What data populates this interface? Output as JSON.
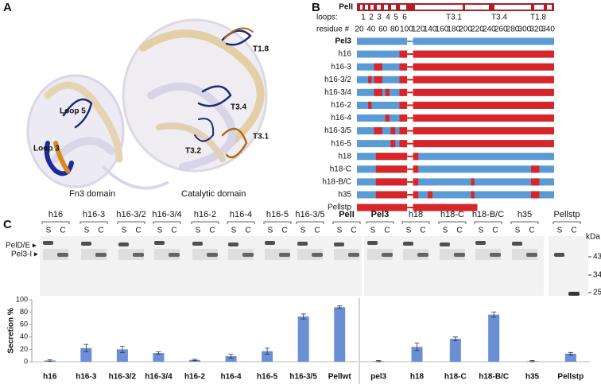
{
  "panel_a": {
    "label": "A",
    "labels": [
      "T1.8",
      "T3.4",
      "T3.2",
      "T3.1",
      "Loop 5",
      "Loop 3"
    ],
    "captions": [
      "Fn3 domain",
      "Catalytic domain"
    ]
  },
  "panel_b": {
    "label": "B",
    "header": "PelI",
    "loops_label": "loops:",
    "loop_numbers": [
      "1",
      "2",
      "3",
      "4",
      "5",
      "6"
    ],
    "regions": [
      "T3.1",
      "T3.4",
      "T1.8"
    ],
    "residue_label": "residue #",
    "residue_lim": [
      16,
      350
    ],
    "residue_ticks": [
      20,
      40,
      60,
      80,
      100,
      120,
      140,
      160,
      180,
      200,
      220,
      240,
      260,
      280,
      300,
      320,
      340
    ],
    "gap": [
      101,
      111
    ],
    "blue": "#5b9bd5",
    "red": "#d7262a",
    "rows": [
      {
        "name": "Pel3",
        "red": []
      },
      {
        "name": "h16",
        "red": [
          [
            88,
            350
          ]
        ]
      },
      {
        "name": "h16-3",
        "red": [
          [
            45,
            59
          ],
          [
            88,
            350
          ]
        ]
      },
      {
        "name": "h16-3/2",
        "red": [
          [
            35,
            41
          ],
          [
            45,
            59
          ],
          [
            88,
            350
          ]
        ]
      },
      {
        "name": "h16-3/4",
        "red": [
          [
            45,
            59
          ],
          [
            64,
            71
          ],
          [
            88,
            350
          ]
        ]
      },
      {
        "name": "h16-2",
        "red": [
          [
            35,
            41
          ],
          [
            88,
            350
          ]
        ]
      },
      {
        "name": "h16-4",
        "red": [
          [
            64,
            71
          ],
          [
            88,
            350
          ]
        ]
      },
      {
        "name": "h16-3/5",
        "red": [
          [
            45,
            59
          ],
          [
            73,
            81
          ],
          [
            88,
            350
          ]
        ]
      },
      {
        "name": "h16-5",
        "red": [
          [
            73,
            81
          ],
          [
            88,
            350
          ]
        ]
      },
      {
        "name": "h18",
        "red": [
          [
            48,
            120
          ]
        ]
      },
      {
        "name": "h18-C",
        "red": [
          [
            48,
            120
          ],
          [
            311,
            325
          ]
        ]
      },
      {
        "name": "h18-B/C",
        "red": [
          [
            48,
            120
          ],
          [
            209,
            215
          ],
          [
            311,
            325
          ]
        ]
      },
      {
        "name": "h35",
        "red": [
          [
            48,
            120
          ],
          [
            136,
            144
          ],
          [
            209,
            215
          ],
          [
            311,
            325
          ]
        ]
      },
      {
        "name": "Pellstp",
        "end": 220,
        "red": [
          [
            16,
            220
          ]
        ]
      }
    ]
  },
  "panel_c": {
    "label": "C",
    "lanes_left": [
      "h16",
      "h16-3",
      "h16-3/2",
      "h16-3/4",
      "h16-2",
      "h16-4",
      "h16-5",
      "h16-3/5",
      "PelI"
    ],
    "lanes_right": [
      "Pel3",
      "h18",
      "h18-C",
      "h18-B/C",
      "h35",
      "Pellstp"
    ],
    "lane_sub": [
      "S",
      "C"
    ],
    "lane_colors": {
      "PelI": "#d7262a",
      "Pel3": "#3a62c9"
    },
    "kda_label": "kDa",
    "markers": [
      43,
      34,
      25
    ],
    "band_labels": [
      "PelD/E ▸",
      "Pel3-I ▸"
    ]
  },
  "chart_data": [
    {
      "type": "bar",
      "y_label": "Secretion %",
      "color": "#6a8fd4",
      "categories": [
        "h16",
        "h16-3",
        "h16-3/2",
        "h16-3/4",
        "h16-2",
        "h16-4",
        "h16-5",
        "h16-3/5",
        "Pellwt"
      ],
      "values": [
        2,
        22,
        20,
        14,
        3,
        9,
        17,
        73,
        88
      ],
      "errors": [
        1,
        6,
        5,
        2,
        1,
        3,
        5,
        4,
        2
      ],
      "ylim": [
        0,
        100
      ],
      "yticks": [
        0,
        20,
        40,
        60,
        80,
        100
      ]
    },
    {
      "type": "bar",
      "color": "#6a8fd4",
      "categories": [
        "pel3",
        "h18",
        "h18-C",
        "h18-B/C",
        "h35",
        "Pellstp"
      ],
      "values": [
        1,
        24,
        37,
        76,
        1,
        13
      ],
      "errors": [
        1,
        6,
        3,
        4,
        1,
        2
      ],
      "ylim": [
        0,
        100
      ]
    }
  ]
}
